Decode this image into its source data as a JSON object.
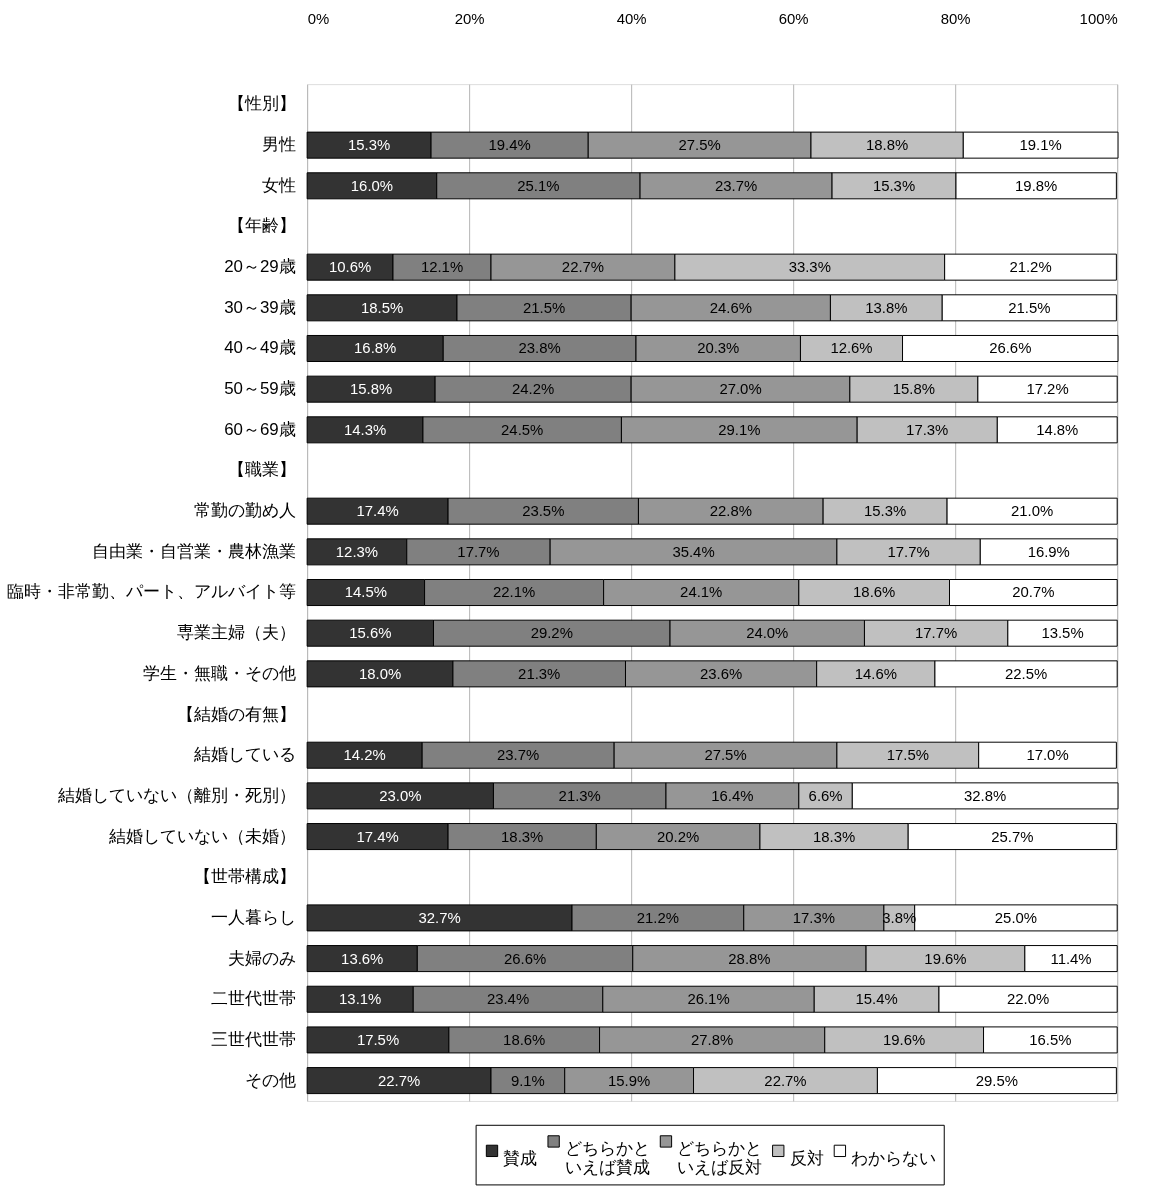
{
  "chart_data": {
    "type": "bar",
    "orientation": "horizontal",
    "stacked": true,
    "categories": [
      "【性別】",
      "男性",
      "女性",
      "【年齢】",
      "20～29歳",
      "30～39歳",
      "40～49歳",
      "50～59歳",
      "60～69歳",
      "【職業】",
      "常勤の勤め人",
      "自由業・自営業・農林漁業",
      "臨時・非常勤、パート、アルバイト等",
      "専業主婦（夫）",
      "学生・無職・その他",
      "【結婚の有無】",
      "結婚している",
      "結婚していない（離別・死別）",
      "結婚していない（未婚）",
      "【世帯構成】",
      "一人暮らし",
      "夫婦のみ",
      "二世代世帯",
      "三世代世帯",
      "その他"
    ],
    "series": [
      {
        "name": "賛成",
        "color": "#333333",
        "values": [
          null,
          15.3,
          16.0,
          null,
          10.6,
          18.5,
          16.8,
          15.8,
          14.3,
          null,
          17.4,
          12.3,
          14.5,
          15.6,
          18.0,
          null,
          14.2,
          23.0,
          17.4,
          null,
          32.7,
          13.6,
          13.1,
          17.5,
          22.7
        ],
        "value_labels": [
          null,
          "15.3%",
          "16.0%",
          null,
          "10.6%",
          "18.5%",
          "16.8%",
          "15.8%",
          "14.3%",
          null,
          "17.4%",
          "12.3%",
          "14.5%",
          "15.6%",
          "18.0%",
          null,
          "14.2%",
          "23.0%",
          "17.4%",
          null,
          "32.7%",
          "13.6%",
          "13.1%",
          "17.5%",
          "22.7%"
        ]
      },
      {
        "name": "どちらかといえば賛成",
        "color": "#808080",
        "values": [
          null,
          19.4,
          25.1,
          null,
          12.1,
          21.5,
          23.8,
          24.2,
          24.5,
          null,
          23.5,
          17.7,
          22.1,
          29.2,
          21.3,
          null,
          23.7,
          21.3,
          18.3,
          null,
          21.2,
          26.6,
          23.4,
          18.6,
          9.1
        ],
        "value_labels": [
          null,
          "19.4%",
          "25.1%",
          null,
          "12.1%",
          "21.5%",
          "23.8%",
          "24.2%",
          "24.5%",
          null,
          "23.5%",
          "17.7%",
          "22.1%",
          "29.2%",
          "21.3%",
          null,
          "23.7%",
          "21.3%",
          "18.3%",
          null,
          "21.2%",
          "26.6%",
          "23.4%",
          "18.6%",
          "9.1%"
        ]
      },
      {
        "name": "どちらかといえば反対",
        "color": "#969696",
        "values": [
          null,
          27.5,
          23.7,
          null,
          22.7,
          24.6,
          20.3,
          27.0,
          29.1,
          null,
          22.8,
          35.4,
          24.1,
          24.0,
          23.6,
          null,
          27.5,
          16.4,
          20.2,
          null,
          17.3,
          28.8,
          26.1,
          27.8,
          15.9
        ],
        "value_labels": [
          null,
          "27.5%",
          "23.7%",
          null,
          "22.7%",
          "24.6%",
          "20.3%",
          "27.0%",
          "29.1%",
          null,
          "22.8%",
          "35.4%",
          "24.1%",
          "24.0%",
          "23.6%",
          null,
          "27.5%",
          "16.4%",
          "20.2%",
          null,
          "17.3%",
          "28.8%",
          "26.1%",
          "27.8%",
          "15.9%"
        ]
      },
      {
        "name": "反対",
        "color": "#c0c0c0",
        "values": [
          null,
          18.8,
          15.3,
          null,
          33.3,
          13.8,
          12.6,
          15.8,
          17.3,
          null,
          15.3,
          17.7,
          18.6,
          17.7,
          14.6,
          null,
          17.5,
          6.6,
          18.3,
          null,
          3.8,
          19.6,
          15.4,
          19.6,
          22.7
        ],
        "value_labels": [
          null,
          "18.8%",
          "15.3%",
          null,
          "33.3%",
          "13.8%",
          "12.6%",
          "15.8%",
          "17.3%",
          null,
          "15.3%",
          "17.7%",
          "18.6%",
          "17.7%",
          "14.6%",
          null,
          "17.5%",
          "6.6%",
          "18.3%",
          null,
          "3.8%",
          "19.6%",
          "15.4%",
          "19.6%",
          "22.7%"
        ]
      },
      {
        "name": "わからない",
        "color": "#ffffff",
        "values": [
          null,
          19.1,
          19.8,
          null,
          21.2,
          21.5,
          26.6,
          17.2,
          14.8,
          null,
          21.0,
          16.9,
          20.7,
          13.5,
          22.5,
          null,
          17.0,
          32.8,
          25.7,
          null,
          25.0,
          11.4,
          22.0,
          16.5,
          29.5
        ],
        "value_labels": [
          null,
          "19.1%",
          "19.8%",
          null,
          "21.2%",
          "21.5%",
          "26.6%",
          "17.2%",
          "14.8%",
          null,
          "21.0%",
          "16.9%",
          "20.7%",
          "13.5%",
          "22.5%",
          null,
          "17.0%",
          "32.8%",
          "25.7%",
          null,
          "25.0%",
          "11.4%",
          "22.0%",
          "16.5%",
          "29.5%"
        ]
      }
    ],
    "xlim": [
      0,
      100
    ],
    "xticks": [
      {
        "value": 0,
        "label": "0%"
      },
      {
        "value": 20,
        "label": "20%"
      },
      {
        "value": 40,
        "label": "40%"
      },
      {
        "value": 60,
        "label": "60%"
      },
      {
        "value": 80,
        "label": "80%"
      },
      {
        "value": 100,
        "label": "100%"
      }
    ],
    "grid": "x",
    "legend": "bottom"
  }
}
